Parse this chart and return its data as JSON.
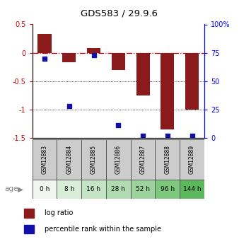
{
  "title": "GDS583 / 29.9.6",
  "samples": [
    "GSM12883",
    "GSM12884",
    "GSM12885",
    "GSM12886",
    "GSM12887",
    "GSM12888",
    "GSM12889"
  ],
  "ages": [
    "0 h",
    "8 h",
    "16 h",
    "28 h",
    "52 h",
    "96 h",
    "144 h"
  ],
  "log_ratio": [
    0.33,
    -0.17,
    0.08,
    -0.3,
    -0.75,
    -1.35,
    -1.0
  ],
  "percentile_rank": [
    70,
    28,
    73,
    11,
    2,
    2,
    2
  ],
  "bar_color": "#8B1A1A",
  "dot_color": "#1111AA",
  "ylim_left": [
    -1.5,
    0.5
  ],
  "ylim_right": [
    0,
    100
  ],
  "yticks_left": [
    -1.5,
    -1.0,
    -0.5,
    0.0,
    0.5
  ],
  "ytick_labels_left": [
    "-1.5",
    "-1",
    "-0.5",
    "0",
    "0.5"
  ],
  "yticks_right": [
    0,
    25,
    50,
    75,
    100
  ],
  "ytick_labels_right": [
    "0",
    "25",
    "50",
    "75",
    "100%"
  ],
  "hline_y": 0.0,
  "dotted_lines": [
    -0.5,
    -1.0
  ],
  "age_colors": [
    "#f0f5f0",
    "#d8edd8",
    "#c4e4c4",
    "#b0dbb0",
    "#9cd29c",
    "#7dc87d",
    "#5cb85c"
  ],
  "bar_width": 0.55,
  "legend_log_ratio": "log ratio",
  "legend_percentile": "percentile rank within the sample",
  "age_label": "age"
}
